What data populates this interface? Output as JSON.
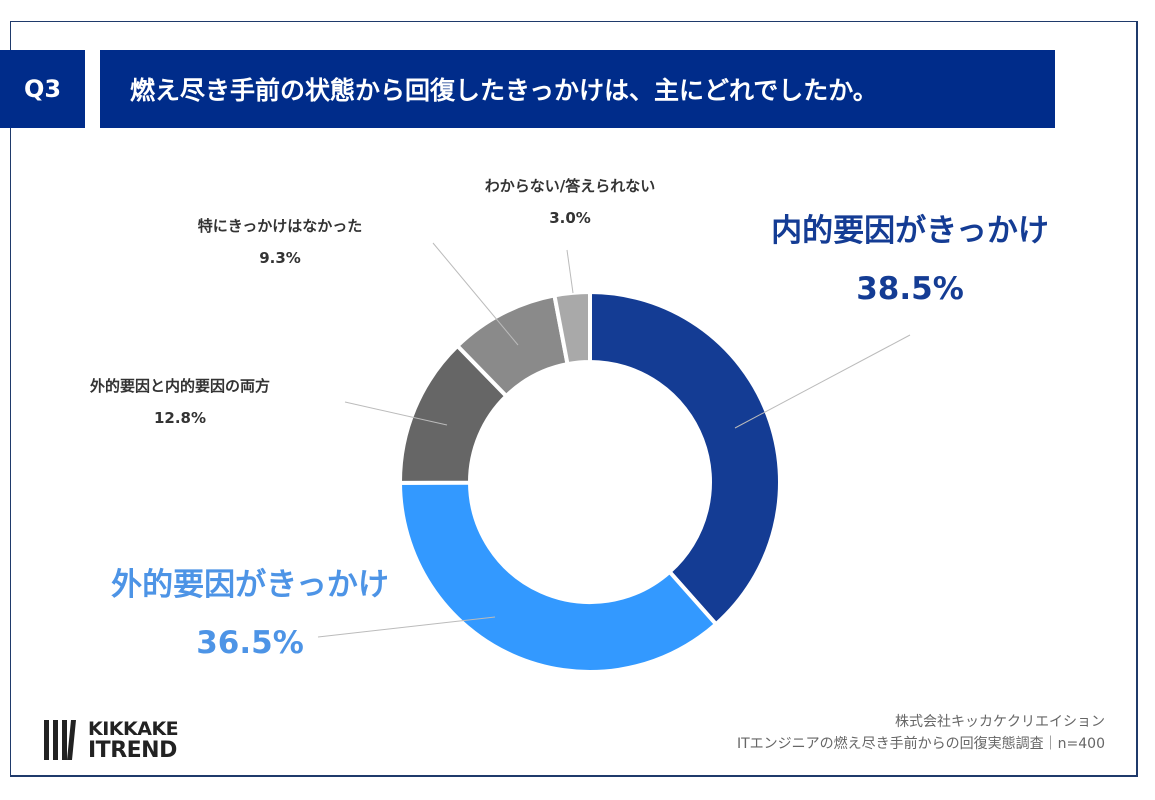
{
  "header": {
    "q_label": "Q3",
    "title": "燃え尽き手前の状態から回復したきっかけは、主にどれでしたか。"
  },
  "chart_data": {
    "type": "pie",
    "donut": true,
    "start": "top, clockwise",
    "slices": [
      {
        "label": "内的要因がきっかけ",
        "value": 38.5,
        "display": "38.5%",
        "color": "#143c94",
        "label_color": "#143c94"
      },
      {
        "label": "外的要因がきっかけ",
        "value": 36.5,
        "display": "36.5%",
        "color": "#3399ff",
        "label_color": "#4d94e6"
      },
      {
        "label": "外的要因と内的要因の両方",
        "value": 12.8,
        "display": "12.8%",
        "color": "#666666",
        "label_color": "#333333"
      },
      {
        "label": "特にきっかけはなかった",
        "value": 9.3,
        "display": "9.3%",
        "color": "#8a8a8a",
        "label_color": "#333333"
      },
      {
        "label": "わからない/答えられない",
        "value": 3.0,
        "display": "3.0%",
        "color": "#a9a9a9",
        "label_color": "#333333"
      }
    ]
  },
  "footer": {
    "company": "株式会社キッカケクリエイション",
    "survey": "ITエンジニアの燃え尽き手前からの回復実態調査｜n=400",
    "logo_line1": "KIKKAKE",
    "logo_line2": "ITREND"
  }
}
